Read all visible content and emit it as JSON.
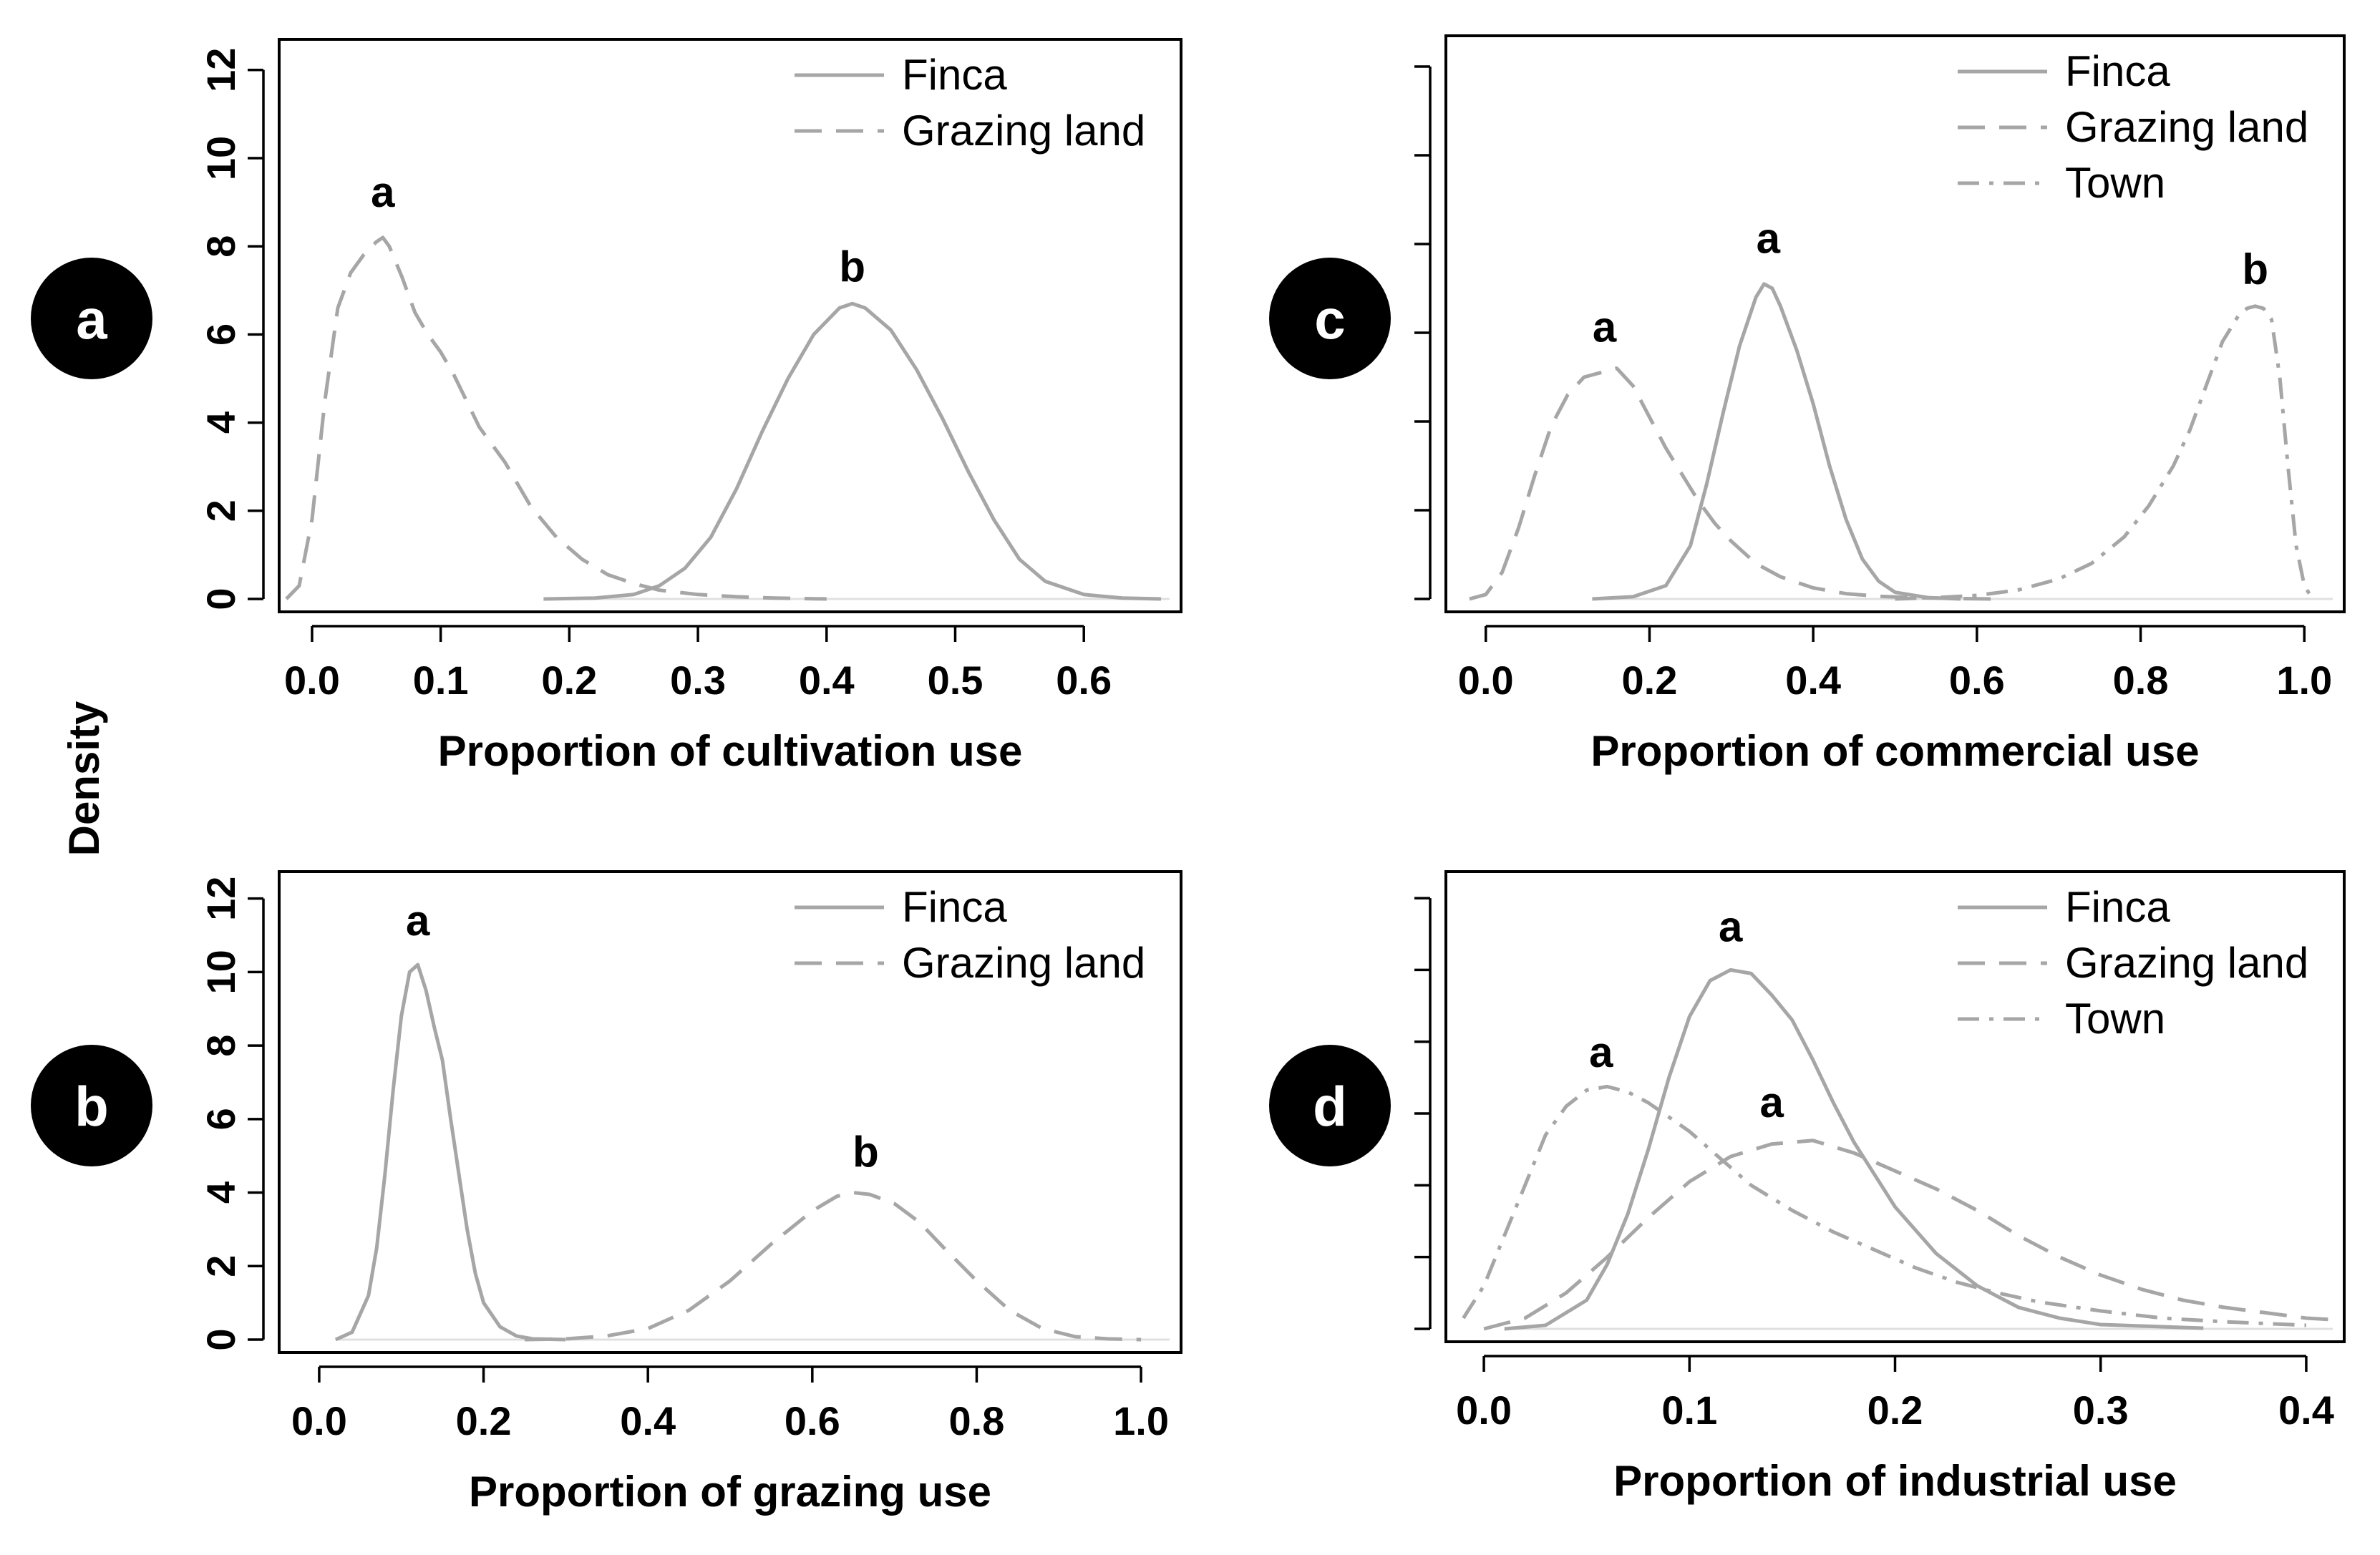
{
  "colors": {
    "series": "#a6a6a6",
    "badge": "#000000",
    "baseline": "#e0e0e0"
  },
  "shared_ylabel": "Density",
  "chart_data": [
    {
      "id": "a",
      "type": "line",
      "panel_label": "a",
      "xlabel": "Proportion of cultivation use",
      "ylabel": "Density",
      "xlim": [
        -0.02,
        0.67
      ],
      "ylim": [
        0,
        12.5
      ],
      "xticks": [
        0.0,
        0.1,
        0.2,
        0.3,
        0.4,
        0.5,
        0.6
      ],
      "xtick_labels": [
        "0.0",
        "0.1",
        "0.2",
        "0.3",
        "0.4",
        "0.5",
        "0.6"
      ],
      "yticks": [
        0,
        2,
        4,
        6,
        8,
        10,
        12
      ],
      "ytick_labels": [
        "0",
        "2",
        "4",
        "6",
        "8",
        "10",
        "12"
      ],
      "show_yticklabels": true,
      "legend_position": "top-right",
      "series": [
        {
          "name": "Finca",
          "style": "solid",
          "x": [
            0.18,
            0.22,
            0.25,
            0.27,
            0.29,
            0.31,
            0.33,
            0.35,
            0.37,
            0.39,
            0.41,
            0.42,
            0.43,
            0.45,
            0.47,
            0.49,
            0.51,
            0.53,
            0.55,
            0.57,
            0.6,
            0.63,
            0.66
          ],
          "values": [
            0,
            0.02,
            0.1,
            0.3,
            0.7,
            1.4,
            2.5,
            3.8,
            5.0,
            6.0,
            6.6,
            6.7,
            6.6,
            6.1,
            5.2,
            4.1,
            2.9,
            1.8,
            0.9,
            0.4,
            0.1,
            0.02,
            0
          ]
        },
        {
          "name": "Grazing land",
          "style": "dashed",
          "x": [
            -0.02,
            -0.01,
            0.0,
            0.01,
            0.02,
            0.03,
            0.04,
            0.05,
            0.055,
            0.06,
            0.07,
            0.08,
            0.09,
            0.1,
            0.11,
            0.12,
            0.13,
            0.15,
            0.17,
            0.19,
            0.21,
            0.23,
            0.25,
            0.27,
            0.3,
            0.33,
            0.36,
            0.4
          ],
          "values": [
            0,
            0.3,
            1.8,
            4.5,
            6.6,
            7.4,
            7.8,
            8.1,
            8.2,
            8.0,
            7.3,
            6.5,
            6.0,
            5.6,
            5.1,
            4.5,
            3.9,
            3.1,
            2.1,
            1.4,
            0.9,
            0.55,
            0.35,
            0.2,
            0.1,
            0.05,
            0.02,
            0
          ]
        }
      ],
      "annotations": [
        {
          "text": "a",
          "x": 0.055,
          "y": 8.9
        },
        {
          "text": "b",
          "x": 0.42,
          "y": 7.2
        }
      ]
    },
    {
      "id": "b",
      "type": "line",
      "panel_label": "b",
      "xlabel": "Proportion of grazing use",
      "ylabel": "Density",
      "xlim": [
        -0.04,
        1.04
      ],
      "ylim": [
        0,
        12.5
      ],
      "xticks": [
        0.0,
        0.2,
        0.4,
        0.6,
        0.8,
        1.0
      ],
      "xtick_labels": [
        "0.0",
        "0.2",
        "0.4",
        "0.6",
        "0.8",
        "1.0"
      ],
      "yticks": [
        0,
        2,
        4,
        6,
        8,
        10,
        12
      ],
      "ytick_labels": [
        "0",
        "2",
        "4",
        "6",
        "8",
        "10",
        "12"
      ],
      "show_yticklabels": true,
      "legend_position": "top-right",
      "series": [
        {
          "name": "Finca",
          "style": "solid",
          "x": [
            0.02,
            0.04,
            0.06,
            0.07,
            0.08,
            0.09,
            0.1,
            0.11,
            0.12,
            0.13,
            0.14,
            0.15,
            0.16,
            0.17,
            0.18,
            0.19,
            0.2,
            0.22,
            0.24,
            0.26,
            0.3
          ],
          "values": [
            0,
            0.2,
            1.2,
            2.5,
            4.5,
            6.8,
            8.8,
            10.0,
            10.2,
            9.5,
            8.5,
            7.6,
            6.0,
            4.5,
            3.0,
            1.8,
            1.0,
            0.35,
            0.1,
            0.02,
            0
          ]
        },
        {
          "name": "Grazing land",
          "style": "dashed",
          "x": [
            0.25,
            0.3,
            0.35,
            0.4,
            0.45,
            0.5,
            0.55,
            0.6,
            0.63,
            0.65,
            0.67,
            0.7,
            0.73,
            0.76,
            0.8,
            0.84,
            0.88,
            0.92,
            0.96,
            1.0
          ],
          "values": [
            0,
            0.02,
            0.1,
            0.3,
            0.8,
            1.6,
            2.6,
            3.5,
            3.9,
            4.0,
            3.95,
            3.7,
            3.2,
            2.5,
            1.6,
            0.8,
            0.3,
            0.08,
            0.02,
            0
          ]
        }
      ],
      "annotations": [
        {
          "text": "a",
          "x": 0.12,
          "y": 11.0
        },
        {
          "text": "b",
          "x": 0.665,
          "y": 4.7
        }
      ]
    },
    {
      "id": "c",
      "type": "line",
      "panel_label": "c",
      "xlabel": "Proportion of commercial use",
      "ylabel": "Density",
      "xlim": [
        -0.04,
        1.04
      ],
      "ylim": [
        0,
        12.5
      ],
      "xticks": [
        0.0,
        0.2,
        0.4,
        0.6,
        0.8,
        1.0
      ],
      "xtick_labels": [
        "0.0",
        "0.2",
        "0.4",
        "0.6",
        "0.8",
        "1.0"
      ],
      "yticks": [
        0,
        2,
        4,
        6,
        8,
        10,
        12
      ],
      "show_yticklabels": false,
      "legend_position": "top-right",
      "series": [
        {
          "name": "Finca",
          "style": "solid",
          "x": [
            0.13,
            0.18,
            0.22,
            0.25,
            0.27,
            0.29,
            0.31,
            0.33,
            0.34,
            0.35,
            0.36,
            0.38,
            0.4,
            0.42,
            0.44,
            0.46,
            0.48,
            0.5,
            0.54,
            0.58
          ],
          "values": [
            0,
            0.05,
            0.3,
            1.2,
            2.6,
            4.2,
            5.7,
            6.8,
            7.1,
            7.0,
            6.6,
            5.6,
            4.4,
            3.0,
            1.8,
            0.9,
            0.4,
            0.15,
            0.03,
            0
          ]
        },
        {
          "name": "Grazing land",
          "style": "dashed",
          "x": [
            -0.02,
            0.0,
            0.02,
            0.04,
            0.06,
            0.08,
            0.1,
            0.12,
            0.14,
            0.16,
            0.18,
            0.2,
            0.22,
            0.24,
            0.26,
            0.28,
            0.3,
            0.33,
            0.36,
            0.4,
            0.44,
            0.48,
            0.52,
            0.58,
            0.62
          ],
          "values": [
            0,
            0.1,
            0.6,
            1.6,
            2.8,
            3.9,
            4.6,
            5.0,
            5.1,
            5.2,
            4.8,
            4.1,
            3.4,
            2.8,
            2.2,
            1.7,
            1.3,
            0.8,
            0.5,
            0.25,
            0.12,
            0.06,
            0.03,
            0.01,
            0
          ]
        },
        {
          "name": "Town",
          "style": "dashdot",
          "x": [
            0.5,
            0.55,
            0.6,
            0.65,
            0.7,
            0.74,
            0.78,
            0.81,
            0.84,
            0.86,
            0.88,
            0.9,
            0.92,
            0.93,
            0.94,
            0.95,
            0.96,
            0.97,
            0.98,
            0.99,
            1.0,
            1.01
          ],
          "values": [
            0,
            0.03,
            0.08,
            0.2,
            0.45,
            0.8,
            1.4,
            2.1,
            3.0,
            3.8,
            4.8,
            5.8,
            6.4,
            6.55,
            6.6,
            6.55,
            6.3,
            5.0,
            3.0,
            1.2,
            0.3,
            0
          ]
        }
      ],
      "annotations": [
        {
          "text": "a",
          "x": 0.145,
          "y": 5.8
        },
        {
          "text": "a",
          "x": 0.345,
          "y": 7.8
        },
        {
          "text": "b",
          "x": 0.94,
          "y": 7.1
        }
      ]
    },
    {
      "id": "d",
      "type": "line",
      "panel_label": "d",
      "xlabel": "Proportion of industrial use",
      "ylabel": "Density",
      "xlim": [
        -0.015,
        0.415
      ],
      "ylim": [
        0,
        12.5
      ],
      "xticks": [
        0.0,
        0.1,
        0.2,
        0.3,
        0.4
      ],
      "xtick_labels": [
        "0.0",
        "0.1",
        "0.2",
        "0.3",
        "0.4"
      ],
      "yticks": [
        0,
        2,
        4,
        6,
        8,
        10,
        12
      ],
      "show_yticklabels": false,
      "legend_position": "top-right",
      "series": [
        {
          "name": "Finca",
          "style": "solid",
          "x": [
            0.01,
            0.03,
            0.05,
            0.06,
            0.07,
            0.08,
            0.09,
            0.1,
            0.11,
            0.12,
            0.13,
            0.14,
            0.15,
            0.16,
            0.17,
            0.18,
            0.19,
            0.2,
            0.22,
            0.24,
            0.26,
            0.28,
            0.3,
            0.35
          ],
          "values": [
            0,
            0.1,
            0.8,
            1.8,
            3.2,
            5.0,
            7.0,
            8.7,
            9.7,
            10.0,
            9.9,
            9.3,
            8.6,
            7.5,
            6.3,
            5.2,
            4.3,
            3.4,
            2.1,
            1.2,
            0.6,
            0.3,
            0.12,
            0.02
          ]
        },
        {
          "name": "Grazing land",
          "style": "dashed",
          "x": [
            0.0,
            0.02,
            0.04,
            0.06,
            0.08,
            0.1,
            0.12,
            0.14,
            0.16,
            0.18,
            0.2,
            0.22,
            0.24,
            0.26,
            0.28,
            0.3,
            0.32,
            0.34,
            0.36,
            0.38,
            0.4,
            0.415
          ],
          "values": [
            0,
            0.3,
            1.0,
            2.0,
            3.1,
            4.1,
            4.8,
            5.15,
            5.25,
            4.9,
            4.4,
            3.9,
            3.3,
            2.6,
            2.0,
            1.5,
            1.1,
            0.8,
            0.6,
            0.45,
            0.3,
            0.25
          ]
        },
        {
          "name": "Town",
          "style": "dashdot",
          "x": [
            -0.01,
            0.0,
            0.01,
            0.02,
            0.03,
            0.04,
            0.05,
            0.06,
            0.07,
            0.08,
            0.09,
            0.1,
            0.11,
            0.12,
            0.13,
            0.15,
            0.17,
            0.19,
            0.21,
            0.23,
            0.25,
            0.27,
            0.3,
            0.33,
            0.36,
            0.4
          ],
          "values": [
            0.3,
            1.2,
            2.6,
            4.0,
            5.4,
            6.2,
            6.65,
            6.75,
            6.6,
            6.3,
            5.9,
            5.5,
            5.0,
            4.5,
            4.0,
            3.3,
            2.7,
            2.2,
            1.7,
            1.3,
            1.0,
            0.75,
            0.5,
            0.3,
            0.2,
            0.1
          ]
        }
      ],
      "annotations": [
        {
          "text": "a",
          "x": 0.057,
          "y": 7.3
        },
        {
          "text": "a",
          "x": 0.12,
          "y": 10.8
        },
        {
          "text": "a",
          "x": 0.14,
          "y": 5.9
        }
      ]
    }
  ]
}
